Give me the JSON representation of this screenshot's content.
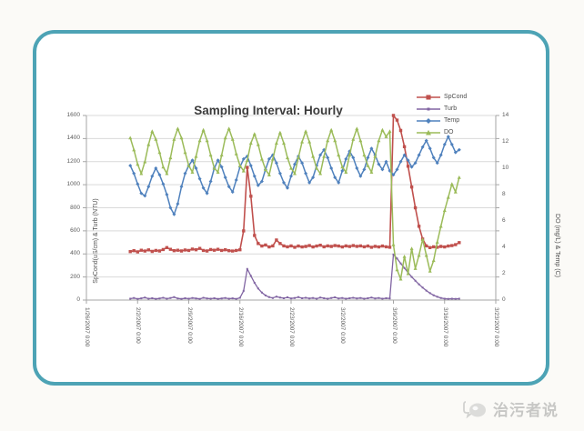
{
  "watermark": {
    "text": "治污者说"
  },
  "chart_data": {
    "type": "line",
    "title": "Sampling Interval: Hourly",
    "grid": "horizontal",
    "legend_position": "top-right",
    "x_tick_labels": [
      "1/26/2007 0:00",
      "2/2/2007 0:00",
      "2/9/2007 0:00",
      "2/16/2007 0:00",
      "2/23/2007 0:00",
      "3/2/2007 0:00",
      "3/9/2007 0:00",
      "3/16/2007 0:00",
      "3/23/2007 0:00"
    ],
    "x_tick_days": [
      0,
      7,
      14,
      21,
      28,
      35,
      42,
      49,
      56
    ],
    "x_range_days": [
      0,
      56
    ],
    "x_start_day": 6,
    "x_step_days": 0.5,
    "y_left": {
      "label": "SpCond(uS/cm) & Turb (NTU)",
      "range": [
        0,
        1600
      ],
      "ticks": [
        1600,
        1400,
        1200,
        1000,
        800,
        600,
        400,
        200,
        0
      ]
    },
    "y_right": {
      "label": "DO (mg/L) & Temp (C)",
      "range": [
        0,
        14
      ],
      "ticks": [
        14,
        12,
        10,
        8,
        6,
        4,
        2,
        0
      ]
    },
    "series": [
      {
        "name": "SpCond",
        "axis": "left",
        "color": "#C0504D",
        "marker": "square",
        "values": [
          420,
          428,
          418,
          432,
          425,
          435,
          422,
          430,
          426,
          438,
          455,
          440,
          428,
          432,
          426,
          434,
          430,
          442,
          436,
          448,
          430,
          426,
          438,
          432,
          440,
          430,
          436,
          428,
          425,
          430,
          436,
          600,
          1150,
          900,
          560,
          490,
          468,
          478,
          460,
          470,
          520,
          490,
          470,
          462,
          470,
          458,
          468,
          460,
          465,
          472,
          460,
          468,
          475,
          462,
          470,
          465,
          472,
          468,
          460,
          470,
          464,
          472,
          466,
          470,
          462,
          468,
          458,
          466,
          460,
          468,
          462,
          458,
          1600,
          1560,
          1470,
          1330,
          1160,
          980,
          800,
          640,
          530,
          470,
          455,
          462,
          458,
          465,
          460,
          468,
          472,
          480,
          498
        ]
      },
      {
        "name": "Turb",
        "axis": "left",
        "color": "#8064A2",
        "marker": "dot",
        "values": [
          12,
          18,
          10,
          15,
          22,
          12,
          16,
          10,
          14,
          20,
          12,
          18,
          25,
          14,
          10,
          16,
          12,
          18,
          14,
          10,
          20,
          14,
          12,
          16,
          10,
          14,
          18,
          12,
          15,
          10,
          20,
          80,
          270,
          210,
          150,
          100,
          65,
          40,
          25,
          18,
          30,
          22,
          16,
          24,
          14,
          18,
          26,
          16,
          20,
          14,
          18,
          12,
          22,
          16,
          12,
          18,
          24,
          14,
          18,
          12,
          16,
          20,
          14,
          18,
          12,
          16,
          22,
          14,
          18,
          12,
          16,
          14,
          395,
          360,
          318,
          278,
          238,
          200,
          168,
          136,
          108,
          82,
          60,
          42,
          28,
          18,
          12,
          10,
          12,
          10,
          12
        ]
      },
      {
        "name": "Temp",
        "axis": "right",
        "color": "#4F81BD",
        "marker": "diamond",
        "values": [
          10.2,
          9.6,
          8.8,
          8.1,
          7.9,
          8.6,
          9.4,
          10.0,
          9.5,
          8.8,
          8.0,
          7.0,
          6.5,
          7.3,
          8.6,
          9.6,
          10.2,
          10.6,
          10.0,
          9.2,
          8.5,
          8.1,
          9.0,
          10.0,
          10.6,
          10.1,
          9.3,
          8.6,
          8.2,
          9.1,
          10.1,
          10.7,
          10.9,
          10.2,
          9.4,
          8.7,
          9.0,
          9.9,
          10.7,
          11.0,
          10.4,
          9.6,
          8.9,
          8.5,
          9.4,
          10.3,
          10.9,
          10.4,
          9.6,
          8.9,
          9.3,
          10.2,
          11.0,
          11.4,
          10.8,
          10.0,
          9.3,
          8.9,
          9.8,
          10.7,
          11.3,
          10.8,
          10.0,
          9.4,
          9.9,
          10.8,
          11.5,
          11.0,
          10.3,
          9.9,
          10.5,
          9.8,
          9.5,
          9.9,
          10.5,
          11.0,
          10.6,
          10.1,
          10.4,
          11.0,
          11.6,
          12.1,
          11.5,
          10.8,
          10.4,
          11.0,
          11.8,
          12.4,
          11.8,
          11.2,
          11.4
        ]
      },
      {
        "name": "DO",
        "axis": "right",
        "color": "#9BBB59",
        "marker": "triangle",
        "values": [
          12.3,
          11.4,
          10.3,
          9.6,
          10.5,
          11.8,
          12.8,
          12.2,
          11.2,
          10.1,
          9.6,
          10.8,
          12.2,
          13.0,
          12.3,
          11.2,
          10.2,
          9.7,
          10.9,
          12.1,
          12.9,
          12.1,
          11.0,
          10.0,
          9.7,
          11.0,
          12.3,
          13.0,
          12.2,
          11.1,
          10.2,
          9.8,
          10.6,
          11.9,
          12.6,
          11.8,
          10.7,
          9.9,
          9.5,
          10.7,
          11.9,
          12.7,
          11.9,
          10.8,
          10.0,
          9.6,
          10.8,
          12.0,
          12.8,
          12.0,
          10.9,
          10.0,
          9.6,
          10.9,
          12.1,
          12.9,
          12.1,
          11.0,
          10.1,
          9.7,
          11.0,
          12.2,
          13.0,
          12.1,
          11.0,
          10.2,
          9.7,
          10.9,
          12.1,
          12.9,
          12.4,
          12.8,
          4.2,
          2.3,
          1.6,
          3.3,
          2.0,
          3.9,
          2.4,
          3.4,
          4.6,
          3.4,
          2.2,
          3.0,
          4.4,
          5.6,
          6.8,
          7.8,
          8.8,
          8.2,
          9.3
        ]
      }
    ]
  }
}
